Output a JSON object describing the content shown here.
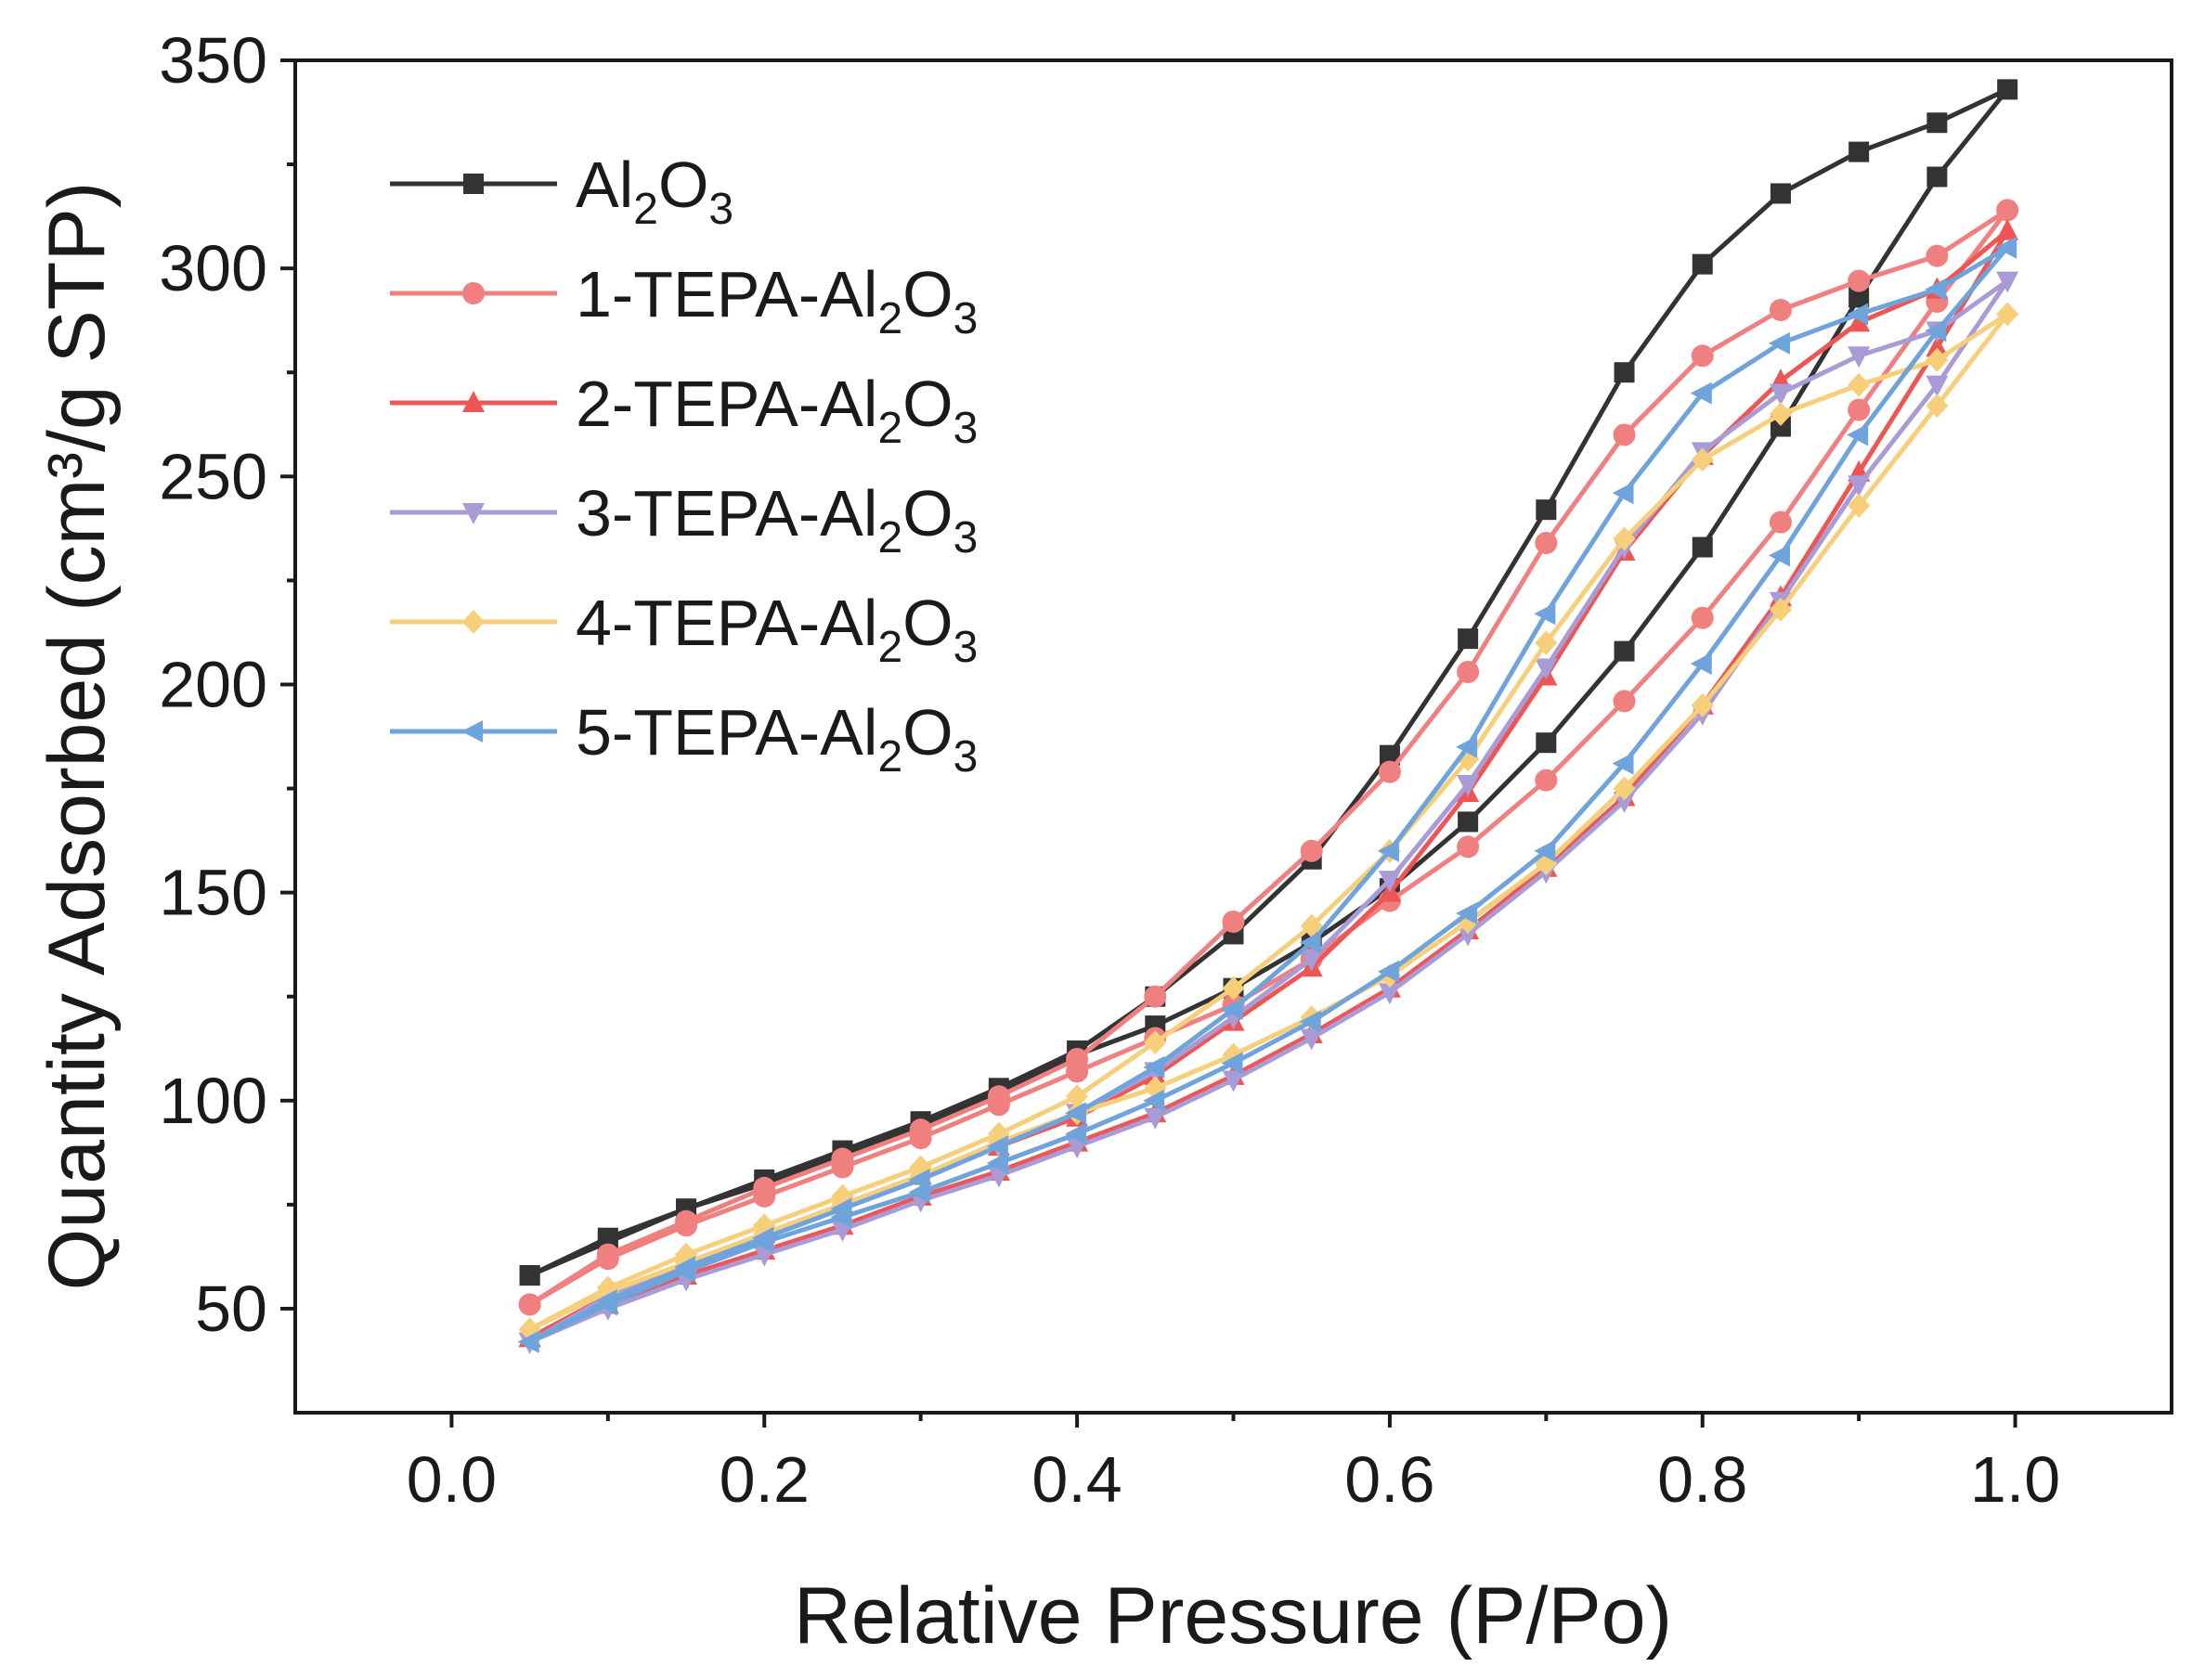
{
  "chart_data": {
    "type": "line",
    "title": "",
    "xlabel": "Relative Pressure (P/Po)",
    "ylabel": "Quantity Adsorbed (cm³/g STP)",
    "xlim": [
      -0.1,
      1.1
    ],
    "ylim": [
      25,
      350
    ],
    "xticks": [
      0.0,
      0.2,
      0.4,
      0.6,
      0.8,
      1.0
    ],
    "xtick_labels": [
      "0.0",
      "0.2",
      "0.4",
      "0.6",
      "0.8",
      "1.0"
    ],
    "yticks": [
      50,
      100,
      150,
      200,
      250,
      300,
      350
    ],
    "ytick_labels": [
      "50",
      "100",
      "150",
      "200",
      "250",
      "300",
      "350"
    ],
    "grid": false,
    "legend_position": "top-left",
    "x_adsorption": [
      0.05,
      0.1,
      0.15,
      0.2,
      0.25,
      0.3,
      0.35,
      0.4,
      0.45,
      0.5,
      0.55,
      0.6,
      0.65,
      0.7,
      0.75,
      0.8,
      0.85,
      0.9,
      0.95,
      0.995
    ],
    "x_desorption": [
      0.95,
      0.9,
      0.85,
      0.8,
      0.75,
      0.7,
      0.65,
      0.6,
      0.55,
      0.5,
      0.45,
      0.4,
      0.35,
      0.3,
      0.25,
      0.2,
      0.15,
      0.1,
      0.05
    ],
    "series": [
      {
        "name": "Al2O3",
        "legend_base": "Al",
        "legend_sub1": "2",
        "legend_mid": "O",
        "legend_sub2": "3",
        "color": "#333333",
        "marker": "square",
        "adsorption": [
          58,
          66,
          74,
          80,
          87,
          94,
          102,
          111,
          118,
          127,
          138,
          151,
          167,
          186,
          208,
          233,
          262,
          293,
          322,
          343
        ],
        "desorption": [
          335,
          328,
          318,
          301,
          275,
          242,
          211,
          183,
          158,
          140,
          125,
          112,
          103,
          95,
          88,
          81,
          74,
          67,
          58
        ]
      },
      {
        "name": "1-TEPA-Al2O3",
        "legend_base": "1-TEPA-Al",
        "legend_sub1": "2",
        "legend_mid": "O",
        "legend_sub2": "3",
        "color": "#f08080",
        "marker": "circle",
        "adsorption": [
          51,
          62,
          70,
          77,
          84,
          91,
          99,
          107,
          115,
          123,
          134,
          148,
          161,
          177,
          196,
          216,
          239,
          266,
          292,
          314
        ],
        "desorption": [
          303,
          297,
          290,
          279,
          260,
          234,
          203,
          179,
          160,
          143,
          125,
          110,
          101,
          93,
          86,
          79,
          71,
          63,
          51
        ]
      },
      {
        "name": "2-TEPA-Al2O3",
        "legend_base": "2-TEPA-Al",
        "legend_sub1": "2",
        "legend_mid": "O",
        "legend_sub2": "3",
        "color": "#ee5555",
        "marker": "triangle-up",
        "adsorption": [
          43,
          51,
          58,
          64,
          70,
          77,
          83,
          90,
          97,
          106,
          116,
          127,
          141,
          156,
          173,
          195,
          221,
          251,
          281,
          309
        ],
        "desorption": [
          295,
          287,
          273,
          255,
          232,
          202,
          174,
          150,
          132,
          119,
          106,
          96,
          89,
          82,
          75,
          68,
          61,
          53,
          43
        ]
      },
      {
        "name": "3-TEPA-Al2O3",
        "legend_base": "3-TEPA-Al",
        "legend_sub1": "2",
        "legend_mid": "O",
        "legend_sub2": "3",
        "color": "#a99bd6",
        "marker": "triangle-down",
        "adsorption": [
          42,
          50,
          57,
          63,
          69,
          76,
          82,
          89,
          96,
          105,
          115,
          126,
          140,
          155,
          172,
          193,
          220,
          248,
          272,
          297
        ],
        "desorption": [
          285,
          279,
          270,
          256,
          233,
          204,
          176,
          153,
          134,
          120,
          107,
          97,
          89,
          82,
          75,
          68,
          61,
          53,
          42
        ]
      },
      {
        "name": "4-TEPA-Al2O3",
        "legend_base": "4-TEPA-Al",
        "legend_sub1": "2",
        "legend_mid": "O",
        "legend_sub2": "3",
        "color": "#f7cf7a",
        "marker": "diamond",
        "adsorption": [
          45,
          54,
          61,
          68,
          75,
          82,
          90,
          97,
          103,
          111,
          120,
          130,
          143,
          157,
          175,
          195,
          218,
          243,
          267,
          289
        ],
        "desorption": [
          278,
          272,
          265,
          254,
          235,
          210,
          182,
          160,
          142,
          127,
          114,
          101,
          92,
          84,
          77,
          70,
          63,
          55,
          45
        ]
      },
      {
        "name": "5-TEPA-Al2O3",
        "legend_base": "5-TEPA-Al",
        "legend_sub1": "2",
        "legend_mid": "O",
        "legend_sub2": "3",
        "color": "#6fa3dc",
        "marker": "triangle-left",
        "adsorption": [
          42,
          51,
          59,
          66,
          72,
          78,
          85,
          92,
          100,
          109,
          119,
          131,
          145,
          160,
          181,
          205,
          231,
          260,
          285,
          305
        ],
        "desorption": [
          295,
          289,
          282,
          270,
          246,
          217,
          185,
          160,
          138,
          122,
          108,
          97,
          89,
          81,
          74,
          67,
          60,
          52,
          42
        ]
      }
    ]
  }
}
